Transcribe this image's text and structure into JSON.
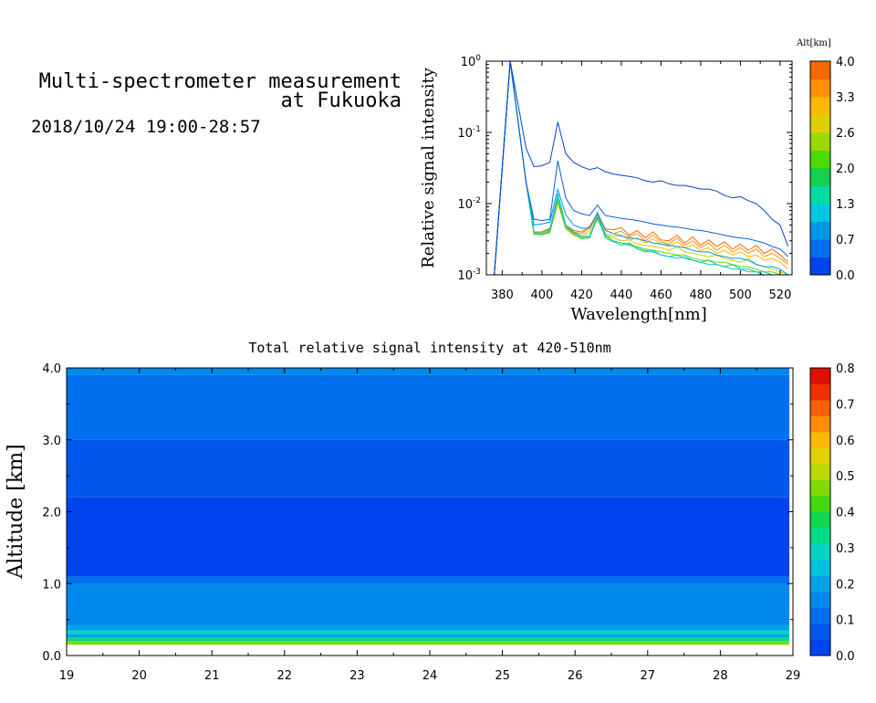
{
  "header": {
    "title_line1": "Multi-spectrometer measurement",
    "title_line2": "at Fukuoka",
    "datetime": "2018/10/24 19:00-28:57"
  },
  "chart_data": [
    {
      "type": "line",
      "title": "",
      "xlabel": "Wavelength[nm]",
      "ylabel": "Relative signal intensity",
      "xlim": [
        372,
        526
      ],
      "ylim_exp": [
        -3,
        0
      ],
      "yscale": "log",
      "x_ticks": [
        "380",
        "400",
        "420",
        "440",
        "460",
        "480",
        "500",
        "520"
      ],
      "y_ticks": [
        {
          "base": "10",
          "exp": "-3"
        },
        {
          "base": "10",
          "exp": "-2"
        },
        {
          "base": "10",
          "exp": "-1"
        },
        {
          "base": "10",
          "exp": "0"
        }
      ],
      "colorbar": {
        "title": "Alt[km]",
        "levels": [
          "0.0",
          "0.7",
          "1.3",
          "2.0",
          "2.6",
          "3.3",
          "4.0"
        ],
        "colors": [
          "#0044ee",
          "#0070ee",
          "#0096e8",
          "#00c8e0",
          "#00dca0",
          "#12d050",
          "#4cda00",
          "#9ad800",
          "#dcd000",
          "#fcb800",
          "#fc9000",
          "#f86800"
        ]
      },
      "x": [
        376,
        384,
        392,
        396,
        400,
        404,
        408,
        412,
        416,
        420,
        424,
        428,
        432,
        436,
        440,
        444,
        448,
        452,
        456,
        460,
        464,
        468,
        472,
        476,
        480,
        484,
        488,
        492,
        496,
        500,
        504,
        508,
        512,
        516,
        520,
        524
      ],
      "series": [
        {
          "alt": 0.1,
          "color": "#0044cc",
          "values": [
            0.001,
            1.0,
            0.06,
            0.033,
            0.034,
            0.038,
            0.14,
            0.05,
            0.038,
            0.033,
            0.03,
            0.032,
            0.028,
            0.026,
            0.025,
            0.024,
            0.023,
            0.021,
            0.02,
            0.021,
            0.019,
            0.018,
            0.018,
            0.017,
            0.016,
            0.016,
            0.015,
            0.013,
            0.012,
            0.0125,
            0.011,
            0.01,
            0.008,
            0.006,
            0.005,
            0.0025
          ]
        },
        {
          "alt": 0.3,
          "color": "#0060dd",
          "values": [
            0.001,
            1.0,
            0.02,
            0.006,
            0.0058,
            0.006,
            0.04,
            0.012,
            0.008,
            0.0072,
            0.0068,
            0.0095,
            0.0068,
            0.0065,
            0.0062,
            0.006,
            0.0058,
            0.0055,
            0.0052,
            0.005,
            0.0048,
            0.0047,
            0.0045,
            0.0043,
            0.0042,
            0.004,
            0.0038,
            0.0036,
            0.0034,
            0.0033,
            0.0032,
            0.003,
            0.0028,
            0.0025,
            0.0023,
            0.0018
          ]
        },
        {
          "alt": 0.7,
          "color": "#0096e8",
          "values": [
            0.001,
            1.0,
            0.02,
            0.005,
            0.0052,
            0.0055,
            0.016,
            0.007,
            0.005,
            0.0045,
            0.0045,
            0.0075,
            0.0042,
            0.0038,
            0.0035,
            0.0033,
            0.0032,
            0.003,
            0.0028,
            0.0027,
            0.0026,
            0.0025,
            0.0024,
            0.0022,
            0.0021,
            0.0021,
            0.0019,
            0.0018,
            0.0017,
            0.0017,
            0.0016,
            0.0014,
            0.0013,
            0.0013,
            0.0012,
            0.001
          ]
        },
        {
          "alt": 1.3,
          "color": "#00c8e0",
          "values": [
            0.001,
            1.0,
            0.02,
            0.004,
            0.004,
            0.0043,
            0.014,
            0.005,
            0.004,
            0.0035,
            0.0034,
            0.0068,
            0.0036,
            0.003,
            0.0028,
            0.0026,
            0.0024,
            0.0022,
            0.0021,
            0.0019,
            0.0018,
            0.0019,
            0.0017,
            0.0016,
            0.0015,
            0.0014,
            0.0014,
            0.0013,
            0.0012,
            0.0012,
            0.0011,
            0.0011,
            0.001,
            0.001,
            0.001,
            0.001
          ]
        },
        {
          "alt": 1.8,
          "color": "#10d080",
          "values": [
            0.001,
            1.0,
            0.02,
            0.0038,
            0.0037,
            0.0041,
            0.012,
            0.0048,
            0.0039,
            0.0033,
            0.0033,
            0.0065,
            0.0033,
            0.0029,
            0.0026,
            0.0028,
            0.0023,
            0.0021,
            0.0022,
            0.0019,
            0.0018,
            0.0017,
            0.0018,
            0.0016,
            0.0015,
            0.0016,
            0.0014,
            0.0013,
            0.0014,
            0.0012,
            0.0012,
            0.0011,
            0.0011,
            0.001,
            0.001,
            0.001
          ]
        },
        {
          "alt": 2.3,
          "color": "#6ad400",
          "values": [
            0.001,
            1.0,
            0.02,
            0.0037,
            0.0037,
            0.0039,
            0.011,
            0.0046,
            0.0037,
            0.0032,
            0.0034,
            0.0062,
            0.0035,
            0.003,
            0.0028,
            0.0027,
            0.0025,
            0.0023,
            0.0022,
            0.0021,
            0.002,
            0.0019,
            0.0019,
            0.0017,
            0.0016,
            0.0016,
            0.0015,
            0.0015,
            0.0014,
            0.0013,
            0.0013,
            0.0012,
            0.0011,
            0.0011,
            0.001,
            0.001
          ]
        },
        {
          "alt": 2.8,
          "color": "#c8d200",
          "values": [
            0.001,
            1.0,
            0.02,
            0.0038,
            0.0036,
            0.004,
            0.01,
            0.0044,
            0.0036,
            0.0033,
            0.0038,
            0.006,
            0.0036,
            0.0033,
            0.003,
            0.0031,
            0.0027,
            0.0026,
            0.0025,
            0.0024,
            0.0022,
            0.0025,
            0.0021,
            0.002,
            0.0019,
            0.0018,
            0.0019,
            0.0017,
            0.0016,
            0.0015,
            0.0017,
            0.0014,
            0.0013,
            0.0012,
            0.0011,
            0.001
          ]
        },
        {
          "alt": 3.3,
          "color": "#fcb800",
          "values": [
            0.001,
            1.0,
            0.02,
            0.0038,
            0.0038,
            0.0042,
            0.0105,
            0.0046,
            0.0038,
            0.0035,
            0.0042,
            0.0065,
            0.0038,
            0.0035,
            0.0036,
            0.0031,
            0.0033,
            0.0028,
            0.0032,
            0.0027,
            0.0025,
            0.0029,
            0.0024,
            0.0026,
            0.0022,
            0.0024,
            0.002,
            0.0022,
            0.0019,
            0.0021,
            0.0018,
            0.0019,
            0.0016,
            0.0017,
            0.0015,
            0.0012
          ]
        },
        {
          "alt": 3.7,
          "color": "#fc9000",
          "values": [
            0.001,
            1.0,
            0.02,
            0.0039,
            0.0039,
            0.0044,
            0.011,
            0.0048,
            0.004,
            0.0038,
            0.0046,
            0.0068,
            0.0042,
            0.0038,
            0.0041,
            0.0034,
            0.0038,
            0.003,
            0.0036,
            0.0029,
            0.0027,
            0.0033,
            0.0026,
            0.003,
            0.0024,
            0.0028,
            0.0022,
            0.0026,
            0.0021,
            0.0024,
            0.002,
            0.0023,
            0.0018,
            0.002,
            0.0017,
            0.0014
          ]
        },
        {
          "alt": 3.9,
          "color": "#f86800",
          "values": [
            0.001,
            1.0,
            0.02,
            0.004,
            0.004,
            0.0045,
            0.0115,
            0.005,
            0.0042,
            0.004,
            0.0048,
            0.0072,
            0.0044,
            0.0043,
            0.0046,
            0.0036,
            0.0042,
            0.0033,
            0.004,
            0.0031,
            0.003,
            0.0036,
            0.0028,
            0.0034,
            0.0026,
            0.0031,
            0.0025,
            0.0029,
            0.0023,
            0.0027,
            0.0022,
            0.0026,
            0.002,
            0.0023,
            0.0019,
            0.0015
          ]
        }
      ]
    },
    {
      "type": "heatmap",
      "title": "Total relative signal intensity at 420-510nm",
      "xlabel": "",
      "ylabel": "Altitude [km]",
      "xlim": [
        19,
        29
      ],
      "ylim": [
        0,
        4
      ],
      "data_time_range": [
        19.0,
        28.95
      ],
      "x_ticks": [
        "19",
        "20",
        "21",
        "22",
        "23",
        "24",
        "25",
        "26",
        "27",
        "28",
        "29"
      ],
      "y_ticks": [
        "0.0",
        "1.0",
        "2.0",
        "3.0",
        "4.0"
      ],
      "altitude_profile": [
        {
          "alt_range": [
            0.0,
            0.15
          ],
          "value": null
        },
        {
          "alt_range": [
            0.15,
            0.2
          ],
          "value": 0.45
        },
        {
          "alt_range": [
            0.2,
            0.25
          ],
          "value": 0.32
        },
        {
          "alt_range": [
            0.25,
            0.3
          ],
          "value": 0.22
        },
        {
          "alt_range": [
            0.3,
            0.35
          ],
          "value": 0.3
        },
        {
          "alt_range": [
            0.35,
            0.42
          ],
          "value": 0.2
        },
        {
          "alt_range": [
            0.42,
            1.0
          ],
          "value": 0.15
        },
        {
          "alt_range": [
            1.0,
            1.1
          ],
          "value": 0.11
        },
        {
          "alt_range": [
            1.1,
            2.2
          ],
          "value": 0.04
        },
        {
          "alt_range": [
            2.2,
            3.0
          ],
          "value": 0.07
        },
        {
          "alt_range": [
            3.0,
            3.9
          ],
          "value": 0.11
        },
        {
          "alt_range": [
            3.9,
            4.0
          ],
          "value": 0.14
        }
      ],
      "colorbar": {
        "levels": [
          "0.0",
          "0.1",
          "0.2",
          "0.3",
          "0.4",
          "0.5",
          "0.6",
          "0.7",
          "0.8"
        ],
        "colors": [
          "#0044ee",
          "#0058ee",
          "#0070ee",
          "#0088ec",
          "#00a2e8",
          "#00c0e0",
          "#00d4c0",
          "#00dc88",
          "#10d850",
          "#40da10",
          "#80da00",
          "#b8d800",
          "#e0d000",
          "#fcb800",
          "#fc8c00",
          "#f86000",
          "#f03000",
          "#e01000"
        ]
      }
    }
  ]
}
